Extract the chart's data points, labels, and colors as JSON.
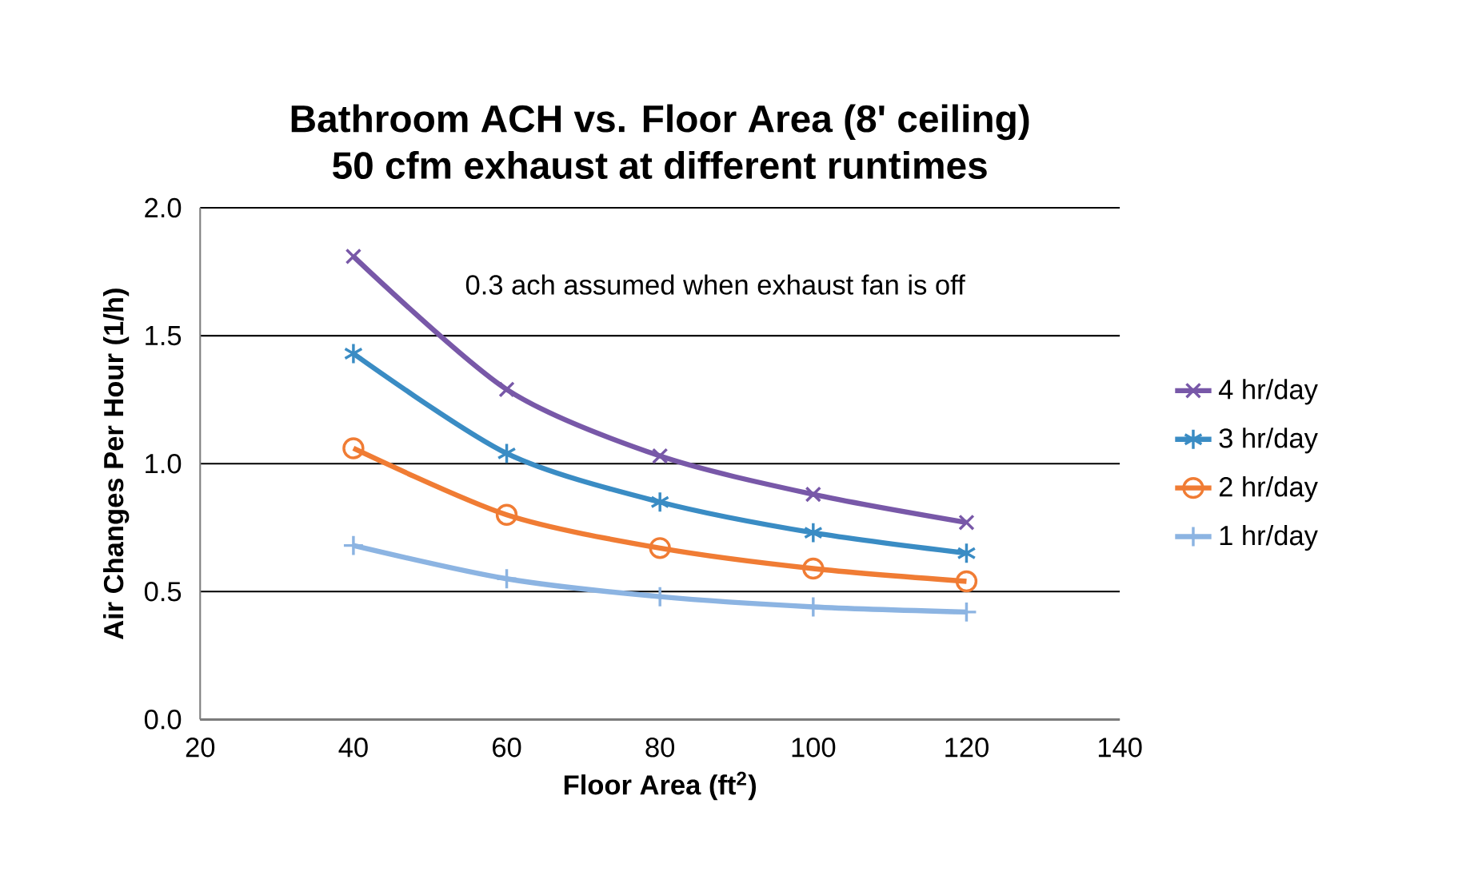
{
  "chart_data": {
    "type": "line",
    "title": "Bathroom ACH vs. Floor Area (8' ceiling)",
    "subtitle": "50 cfm exhaust at different runtimes",
    "xlabel": "Floor Area (ft$^{2}$)",
    "ylabel": "Air Changes Per Hour (1/h)",
    "annotations": [
      "0.3 ach assumed when exhaust fan is off"
    ],
    "x": [
      40,
      60,
      80,
      100,
      120
    ],
    "series": [
      {
        "name": "4 hr/day",
        "color": "#7858a8",
        "marker": "cross",
        "values": [
          1.81,
          1.29,
          1.03,
          0.88,
          0.77
        ]
      },
      {
        "name": "3 hr/day",
        "color": "#3a8cc4",
        "marker": "cross",
        "values": [
          1.43,
          1.04,
          0.85,
          0.73,
          0.65
        ]
      },
      {
        "name": "2 hr/day",
        "color": "#f07c34",
        "marker": "circle",
        "values": [
          1.06,
          0.8,
          0.67,
          0.59,
          0.54
        ]
      },
      {
        "name": "1 hr/day",
        "color": "#8cb4e2",
        "marker": "cross",
        "values": [
          0.68,
          0.55,
          0.48,
          0.44,
          0.42
        ]
      }
    ],
    "xlim": [
      20,
      140
    ],
    "xticks": [
      20,
      40,
      60,
      80,
      100,
      120,
      140
    ],
    "ylim": [
      0,
      2
    ],
    "yticks": [
      {
        "value": 0,
        "label": "0.0"
      },
      {
        "value": 0.5,
        "label": "0.5"
      },
      {
        "value": 1,
        "label": "1.0"
      },
      {
        "value": 1.5,
        "label": "1.5"
      },
      {
        "value": 2,
        "label": "2.0"
      }
    ],
    "grid": "y",
    "legend": "right",
    "line_style": "solid"
  }
}
